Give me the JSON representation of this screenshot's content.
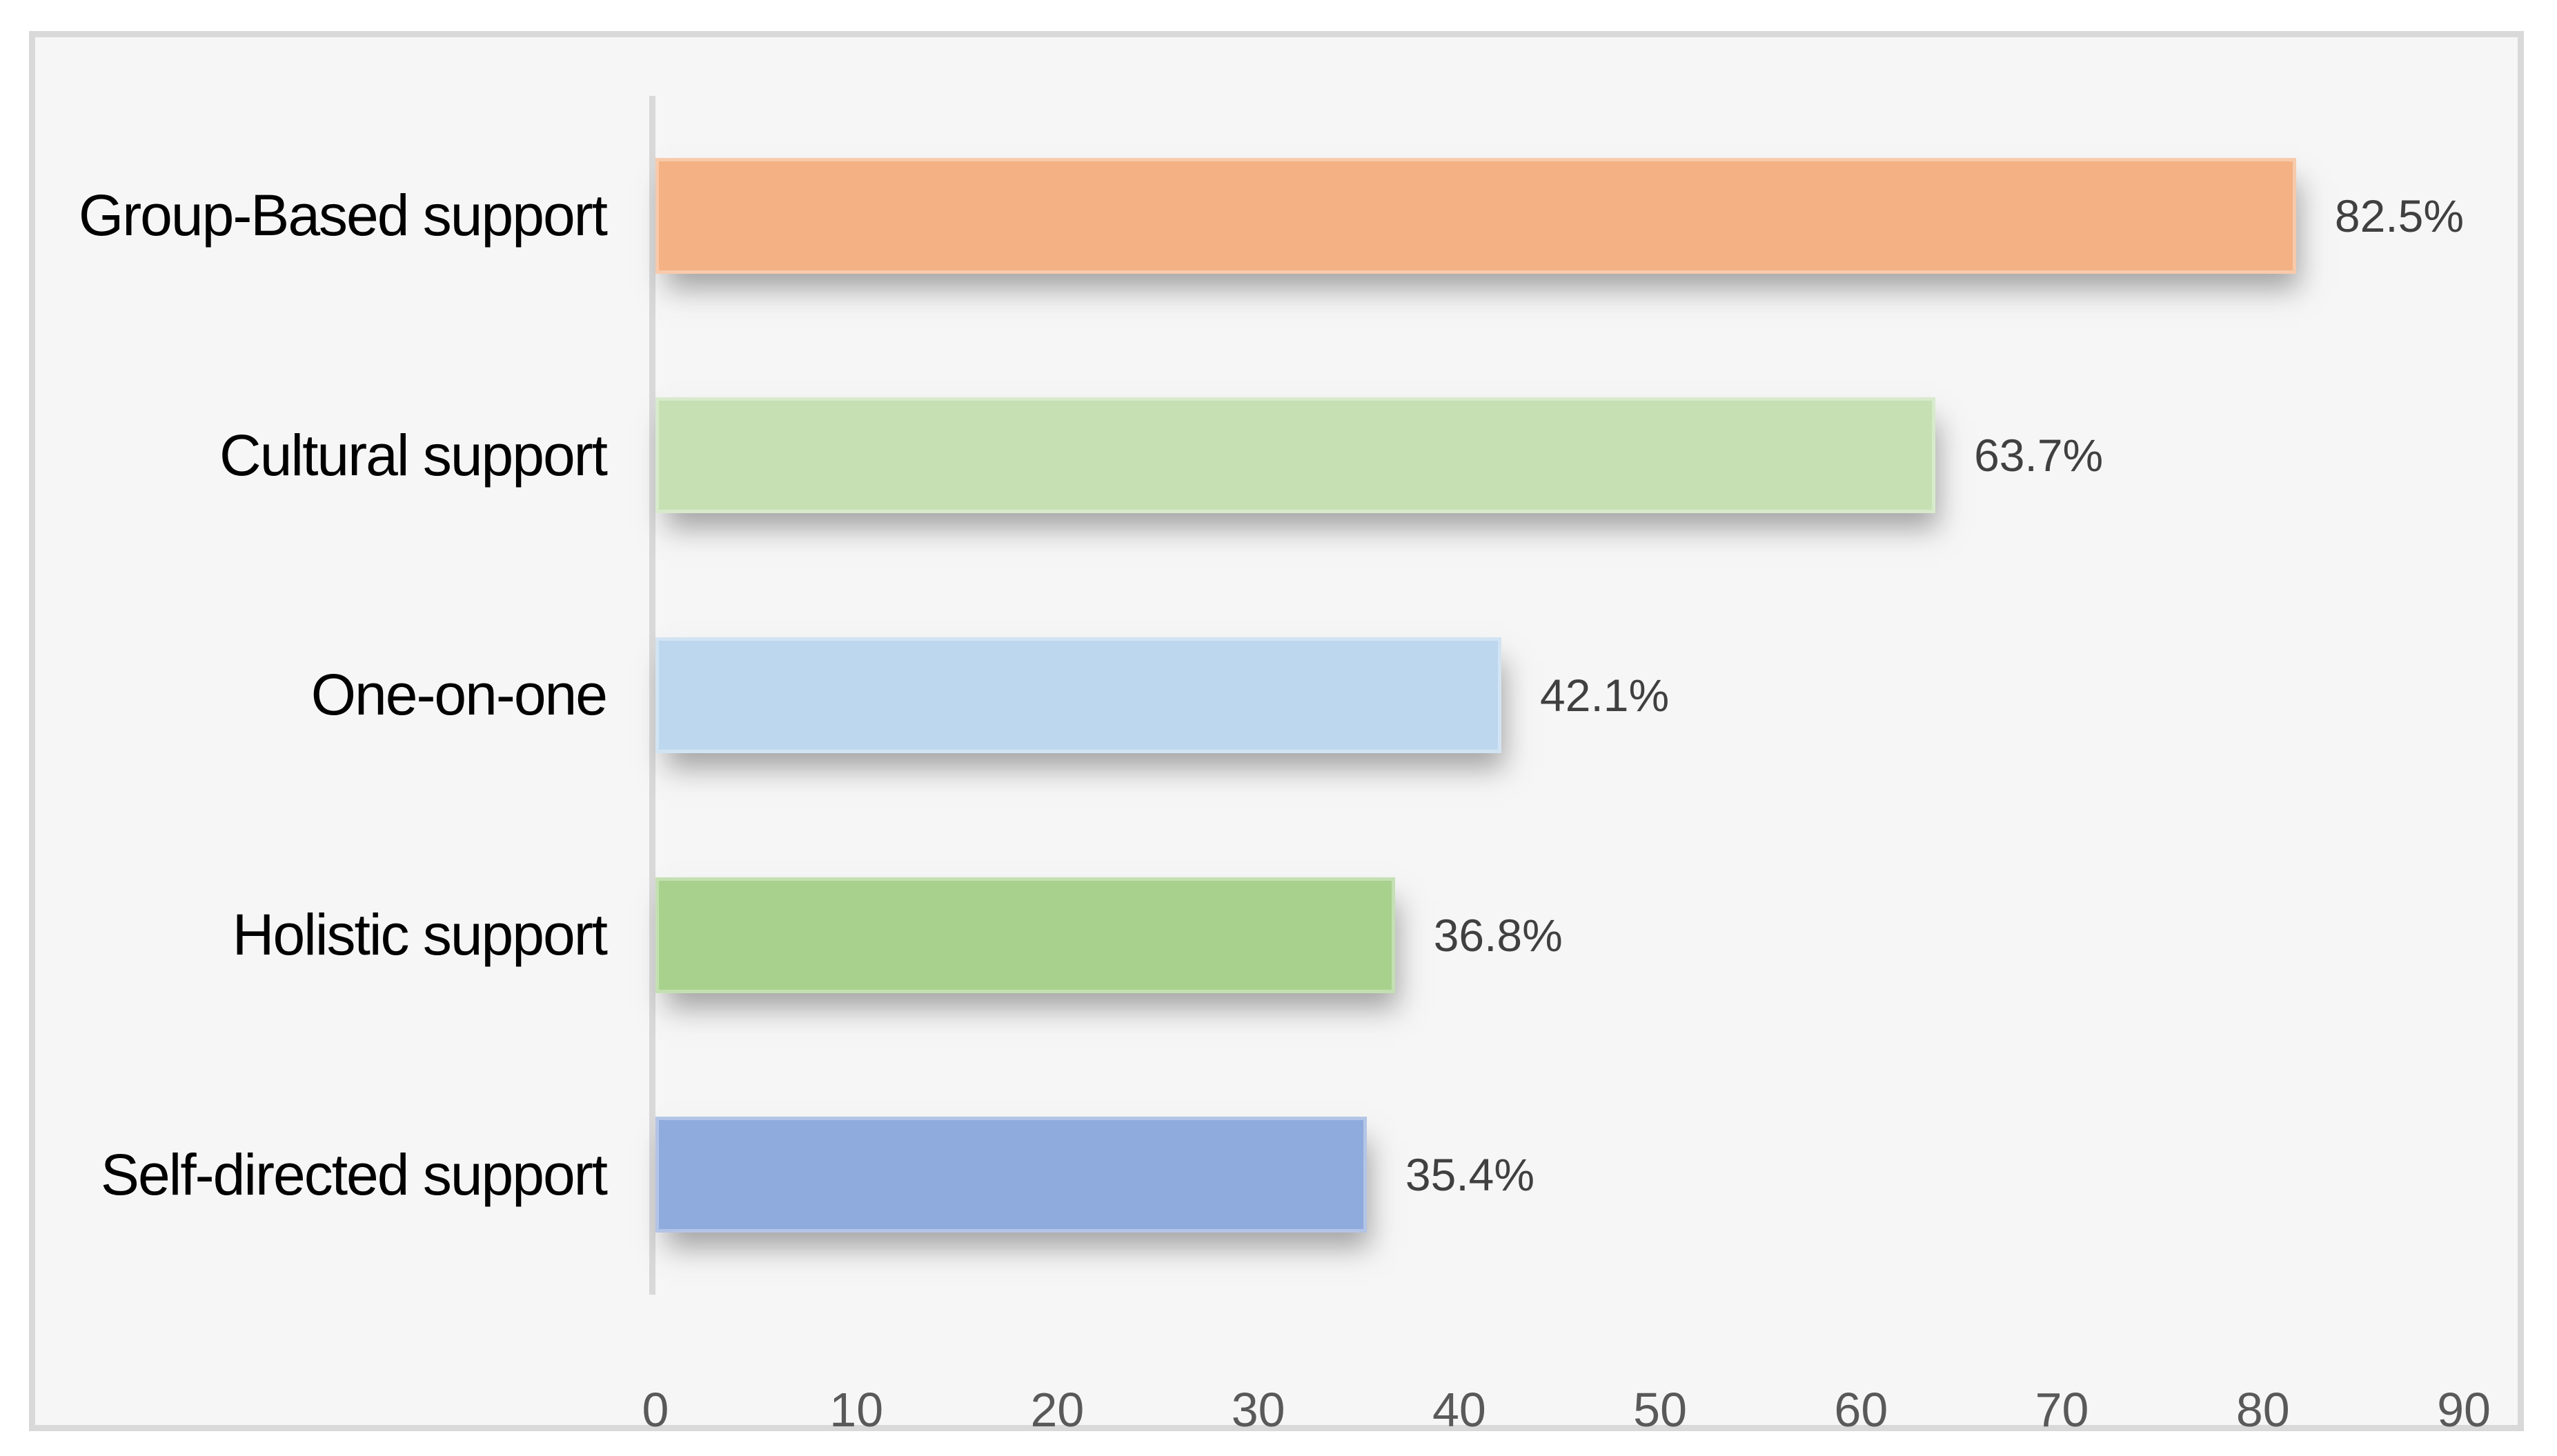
{
  "chart_data": {
    "type": "bar",
    "orientation": "horizontal",
    "title": "",
    "categories": [
      "Group-Based support",
      "Cultural support",
      "One-on-one",
      "Holistic support",
      "Self-directed support"
    ],
    "values": [
      82.5,
      63.7,
      42.1,
      36.8,
      35.4
    ],
    "value_labels": [
      "82.5%",
      "63.7%",
      "42.1%",
      "36.8%",
      "35.4%"
    ],
    "bar_colors": [
      "#F4B183",
      "#C6E0B4",
      "#BDD7EE",
      "#A9D18E",
      "#8FAADC"
    ],
    "xlabel": "",
    "ylabel": "",
    "xlim": [
      0,
      90
    ],
    "xticks": [
      "0",
      "10",
      "20",
      "30",
      "40",
      "50",
      "60",
      "70",
      "80",
      "90"
    ],
    "grid": false,
    "legend": false,
    "data_label_position": "outside-end"
  },
  "style": {
    "frame_border_color": "#D9D9D9",
    "plot_background": "#F6F6F6",
    "axis_line_color": "#D9D9D9",
    "tick_color": "#595959",
    "value_label_color": "#404040",
    "category_label_color": "#000000",
    "page_background": "#FFFFFF"
  }
}
